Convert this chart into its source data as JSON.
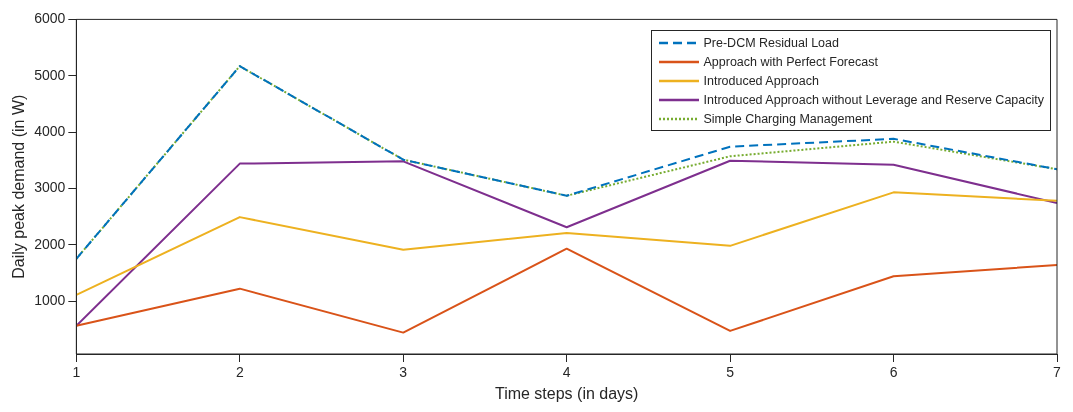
{
  "chart_data": {
    "type": "line",
    "xlabel": "Time steps (in days)",
    "ylabel": "Daily peak demand (in W)",
    "x": [
      1,
      2,
      3,
      4,
      5,
      6,
      7
    ],
    "xlim": [
      1,
      7
    ],
    "xticks": [
      1,
      2,
      3,
      4,
      5,
      6,
      7
    ],
    "ylim": [
      60,
      6000
    ],
    "yticks": [
      1000,
      2000,
      3000,
      4000,
      5000,
      6000
    ],
    "grid": false,
    "legend": "top right",
    "marker": "none",
    "series": [
      {
        "name": "Pre-DCM Residual Load",
        "color": "#0072bd",
        "line_style": "dashed",
        "values": [
          1750,
          5170,
          3510,
          2870,
          3740,
          3880,
          3340
        ]
      },
      {
        "name": "Approach with Perfect Forecast",
        "color": "#d95319",
        "line_style": "solid",
        "values": [
          560,
          1220,
          440,
          1930,
          470,
          1440,
          1640
        ]
      },
      {
        "name": "Introduced Approach",
        "color": "#edb120",
        "line_style": "solid",
        "values": [
          1110,
          2490,
          1910,
          2210,
          1980,
          2930,
          2780
        ]
      },
      {
        "name": "Introduced Approach without Leverage and Reserve Capacity",
        "color": "#7e2f8e",
        "line_style": "solid",
        "values": [
          560,
          3440,
          3480,
          2310,
          3490,
          3420,
          2740
        ]
      },
      {
        "name": "Simple Charging Management",
        "color": "#77ac30",
        "line_style": "dotted",
        "values": [
          1750,
          5170,
          3510,
          2870,
          3570,
          3830,
          3340
        ]
      }
    ]
  }
}
